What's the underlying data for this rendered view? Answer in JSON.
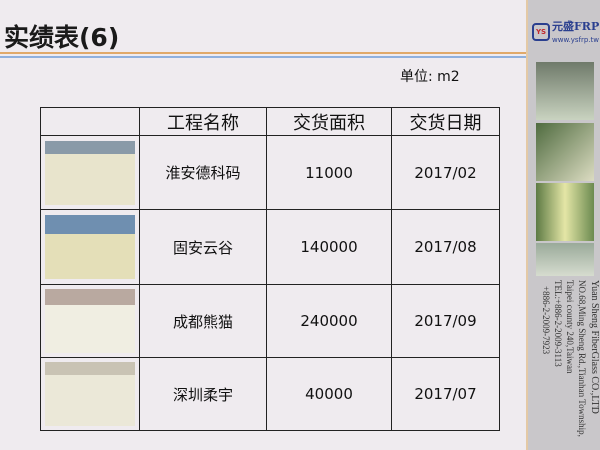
{
  "header": {
    "title": "实绩表(6)",
    "unit": "单位: m2"
  },
  "table": {
    "headers": [
      "",
      "工程名称",
      "交货面积",
      "交货日期"
    ],
    "rows": [
      {
        "name": "淮安德科码",
        "area": "11000",
        "date": "2017/02"
      },
      {
        "name": "固安云谷",
        "area": "140000",
        "date": "2017/08"
      },
      {
        "name": "成都熊猫",
        "area": "240000",
        "date": "2017/09"
      },
      {
        "name": "深圳柔宇",
        "area": "40000",
        "date": "2017/07"
      }
    ]
  },
  "sidebar": {
    "logo": {
      "mark": "YS",
      "name": "元盛FRP",
      "url": "www.ysfrp.tw"
    },
    "address": [
      "Yuan Sheng FiberGlass CO.,LTD",
      "NO.68,Ming Sheng Rd.,Tianhan Township,",
      "Taipei county 240,Taiwan",
      "TEL:+886-2-2009-3113",
      "+886-2-2009-7923"
    ]
  },
  "colors": {
    "accent_orange": "#e0a96a",
    "accent_blue": "#8fb0dd",
    "logo_blue": "#2a3f8f"
  }
}
